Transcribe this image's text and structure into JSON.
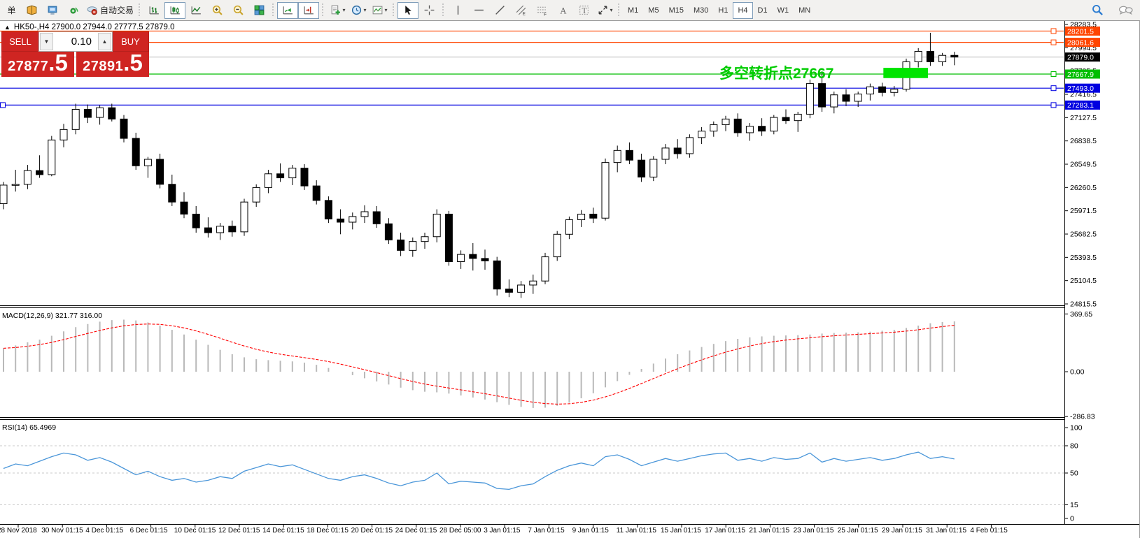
{
  "toolbar": {
    "new_order_label": "单",
    "autotrading_label": "自动交易",
    "timeframes": [
      "M1",
      "M5",
      "M15",
      "M30",
      "H1",
      "H4",
      "D1",
      "W1",
      "MN"
    ],
    "active_timeframe": "H4"
  },
  "chart_header": {
    "title": "HK50-,H4 27900.0 27944.0 27777.5 27879.0",
    "collapse_glyph": "▲"
  },
  "trade_panel": {
    "sell_label": "SELL",
    "buy_label": "BUY",
    "volume": "0.10",
    "volume_down_glyph": "▼",
    "volume_up_glyph": "▲",
    "sell_price_int": "27877",
    "sell_price_frac": ".5",
    "buy_price_int": "27891",
    "buy_price_frac": ".5"
  },
  "annotation": {
    "text": "多空转折点27667",
    "color": "#00cc00"
  },
  "colors": {
    "panel_red": "#cf2522",
    "bull_candle": "#ffffff",
    "bear_candle": "#000000",
    "bid_line": "#c8c8c8",
    "macd_histogram": "#b9b9b9",
    "macd_signal": "#ff0000",
    "rsi_line": "#4a96d9",
    "rsi_levels": "#c8c8c8"
  },
  "chart_data": [
    {
      "id": "price",
      "type": "candlestick",
      "symbol": "HK50-",
      "timeframe": "H4",
      "y_ticks": [
        28283.5,
        27994.5,
        27705.5,
        27416.5,
        27127.5,
        26838.5,
        26549.5,
        26260.5,
        25971.5,
        25682.5,
        25393.5,
        25104.5,
        24815.5
      ],
      "current_price": 27879.0,
      "levels": [
        {
          "price": 28201.5,
          "label": "28201.5",
          "color": "#ff4500",
          "type": "hline"
        },
        {
          "price": 28061.6,
          "label": "28061.6",
          "color": "#ff4500",
          "type": "hline"
        },
        {
          "price": 27879.0,
          "label": "27879.0",
          "color": "#c8c8c8",
          "badge": "#000000",
          "type": "bid"
        },
        {
          "price": 27667.9,
          "label": "27667.9",
          "color": "#00be00",
          "type": "hline"
        },
        {
          "price": 27493.0,
          "label": "27493.0",
          "color": "#0000e0",
          "type": "hline"
        },
        {
          "price": 27283.1,
          "label": "27283.1",
          "color": "#0000e0",
          "type": "hline",
          "left_handle": true
        }
      ],
      "rectangle": {
        "top_price": 27745,
        "bottom_price": 27618,
        "from_index": 73.1,
        "to_index": 76.8,
        "color": "#00e400"
      },
      "ohlc": [
        [
          26060,
          26330,
          25990,
          26290
        ],
        [
          26290,
          26480,
          26210,
          26300
        ],
        [
          26300,
          26540,
          26240,
          26470
        ],
        [
          26470,
          26660,
          26380,
          26420
        ],
        [
          26420,
          26900,
          26400,
          26850
        ],
        [
          26850,
          27050,
          26760,
          26980
        ],
        [
          26980,
          27300,
          26920,
          27230
        ],
        [
          27230,
          27290,
          27060,
          27130
        ],
        [
          27130,
          27280,
          27040,
          27250
        ],
        [
          27250,
          27300,
          27080,
          27110
        ],
        [
          27110,
          27160,
          26820,
          26870
        ],
        [
          26870,
          26940,
          26480,
          26530
        ],
        [
          26530,
          26640,
          26380,
          26610
        ],
        [
          26610,
          26680,
          26250,
          26300
        ],
        [
          26300,
          26420,
          26030,
          26080
        ],
        [
          26080,
          26200,
          25880,
          25930
        ],
        [
          25930,
          26030,
          25700,
          25760
        ],
        [
          25760,
          25890,
          25640,
          25700
        ],
        [
          25700,
          25820,
          25610,
          25780
        ],
        [
          25780,
          25850,
          25650,
          25710
        ],
        [
          25710,
          26120,
          25660,
          26080
        ],
        [
          26080,
          26300,
          26020,
          26260
        ],
        [
          26260,
          26480,
          26190,
          26430
        ],
        [
          26430,
          26560,
          26330,
          26380
        ],
        [
          26380,
          26540,
          26290,
          26500
        ],
        [
          26500,
          26550,
          26230,
          26280
        ],
        [
          26280,
          26350,
          26050,
          26100
        ],
        [
          26100,
          26150,
          25820,
          25870
        ],
        [
          25870,
          25990,
          25680,
          25830
        ],
        [
          25830,
          25950,
          25740,
          25900
        ],
        [
          25900,
          26040,
          25820,
          25960
        ],
        [
          25960,
          26030,
          25760,
          25810
        ],
        [
          25810,
          25880,
          25560,
          25610
        ],
        [
          25610,
          25700,
          25410,
          25480
        ],
        [
          25480,
          25640,
          25400,
          25590
        ],
        [
          25590,
          25700,
          25500,
          25650
        ],
        [
          25650,
          25990,
          25580,
          25930
        ],
        [
          25930,
          25970,
          25290,
          25340
        ],
        [
          25340,
          25480,
          25250,
          25430
        ],
        [
          25430,
          25570,
          25230,
          25380
        ],
        [
          25380,
          25490,
          25240,
          25350
        ],
        [
          25350,
          25400,
          24920,
          25000
        ],
        [
          25000,
          25120,
          24900,
          24960
        ],
        [
          24960,
          25100,
          24890,
          25050
        ],
        [
          25050,
          25180,
          24940,
          25100
        ],
        [
          25100,
          25450,
          25060,
          25400
        ],
        [
          25400,
          25720,
          25350,
          25680
        ],
        [
          25680,
          25900,
          25620,
          25860
        ],
        [
          25860,
          25980,
          25770,
          25930
        ],
        [
          25930,
          26010,
          25820,
          25880
        ],
        [
          25880,
          26620,
          25850,
          26570
        ],
        [
          26570,
          26780,
          26450,
          26720
        ],
        [
          26720,
          26820,
          26550,
          26600
        ],
        [
          26600,
          26680,
          26330,
          26390
        ],
        [
          26390,
          26650,
          26340,
          26610
        ],
        [
          26610,
          26800,
          26550,
          26750
        ],
        [
          26750,
          26860,
          26620,
          26680
        ],
        [
          26680,
          26920,
          26630,
          26880
        ],
        [
          26880,
          27010,
          26800,
          26960
        ],
        [
          26960,
          27080,
          26890,
          27040
        ],
        [
          27040,
          27150,
          26960,
          27110
        ],
        [
          27110,
          27180,
          26890,
          26940
        ],
        [
          26940,
          27060,
          26840,
          27020
        ],
        [
          27020,
          27120,
          26900,
          26960
        ],
        [
          26960,
          27160,
          26920,
          27130
        ],
        [
          27130,
          27230,
          27050,
          27090
        ],
        [
          27090,
          27200,
          26950,
          27170
        ],
        [
          27170,
          27600,
          27120,
          27550
        ],
        [
          27550,
          27700,
          27200,
          27260
        ],
        [
          27260,
          27450,
          27180,
          27410
        ],
        [
          27410,
          27480,
          27270,
          27330
        ],
        [
          27330,
          27450,
          27260,
          27420
        ],
        [
          27420,
          27550,
          27340,
          27510
        ],
        [
          27510,
          27560,
          27390,
          27440
        ],
        [
          27440,
          27520,
          27390,
          27480
        ],
        [
          27480,
          27860,
          27450,
          27820
        ],
        [
          27820,
          27990,
          27750,
          27950
        ],
        [
          27950,
          28180,
          27770,
          27820
        ],
        [
          27820,
          27930,
          27770,
          27900
        ],
        [
          27900,
          27944,
          27777.5,
          27879
        ]
      ]
    },
    {
      "id": "macd",
      "type": "macd",
      "label_name": "MACD(12,26,9)",
      "label_macd": "321.77",
      "label_signal": "316.00",
      "y_ticks": [
        369.65,
        0.0,
        -286.83
      ],
      "values": [
        150,
        168,
        188,
        205,
        230,
        258,
        285,
        305,
        320,
        330,
        333,
        328,
        315,
        295,
        268,
        238,
        205,
        172,
        140,
        112,
        92,
        80,
        74,
        70,
        66,
        58,
        44,
        24,
        0,
        -22,
        -42,
        -62,
        -82,
        -102,
        -118,
        -128,
        -132,
        -140,
        -152,
        -165,
        -178,
        -195,
        -212,
        -225,
        -232,
        -230,
        -218,
        -198,
        -170,
        -138,
        -100,
        -60,
        -20,
        18,
        52,
        84,
        112,
        136,
        158,
        178,
        196,
        210,
        220,
        226,
        230,
        232,
        234,
        238,
        244,
        248,
        250,
        252,
        256,
        262,
        268,
        280,
        295,
        310,
        318,
        322
      ]
    },
    {
      "id": "rsi",
      "type": "line",
      "label_name": "RSI(14)",
      "label_value": "65.4969",
      "y_ticks": [
        100,
        80,
        50,
        15,
        0
      ],
      "levels": [
        80,
        50,
        15
      ],
      "values": [
        55,
        60,
        58,
        63,
        68,
        72,
        70,
        64,
        67,
        62,
        55,
        48,
        52,
        46,
        42,
        44,
        40,
        42,
        46,
        44,
        52,
        56,
        60,
        57,
        59,
        54,
        49,
        44,
        42,
        46,
        48,
        44,
        39,
        36,
        40,
        42,
        50,
        38,
        41,
        40,
        39,
        33,
        32,
        36,
        38,
        46,
        53,
        58,
        61,
        58,
        68,
        70,
        65,
        58,
        62,
        66,
        63,
        66,
        69,
        71,
        72,
        64,
        66,
        63,
        67,
        65,
        66,
        72,
        62,
        66,
        63,
        65,
        67,
        64,
        66,
        70,
        73,
        66,
        68,
        65.5
      ]
    }
  ],
  "time_axis": {
    "labels": [
      "28 Nov 2018",
      "30 Nov 01:15",
      "4 Dec 01:15",
      "6 Dec 01:15",
      "10 Dec 01:15",
      "12 Dec 01:15",
      "14 Dec 01:15",
      "18 Dec 01:15",
      "20 Dec 01:15",
      "24 Dec 01:15",
      "28 Dec 05:00",
      "3 Jan 01:15",
      "7 Jan 01:15",
      "9 Jan 01:15",
      "11 Jan 01:15",
      "15 Jan 01:15",
      "17 Jan 01:15",
      "21 Jan 01:15",
      "23 Jan 01:15",
      "25 Jan 01:15",
      "29 Jan 01:15",
      "31 Jan 01:15",
      "4 Feb 01:15"
    ]
  }
}
